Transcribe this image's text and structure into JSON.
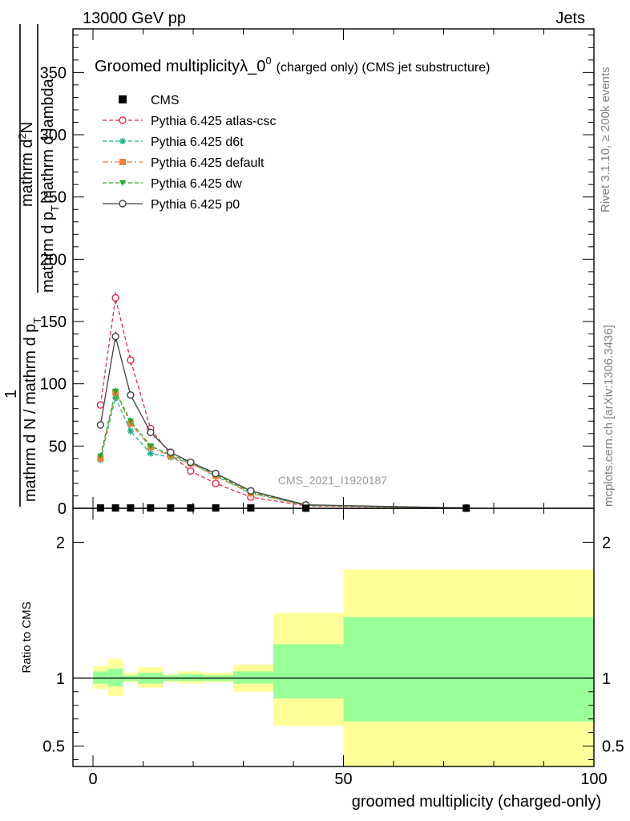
{
  "header": {
    "left": "13000 GeV pp",
    "right": "Jets"
  },
  "side_labels": {
    "rivet": "Rivet 3.1.10, ≥ 200k events",
    "mcplots": "mcplots.cern.ch [arXiv:1306.3436]"
  },
  "chart_data": [
    {
      "type": "line",
      "title": "Groomed multiplicityλ_0",
      "title_sup": "0",
      "title_suffix": "(charged only) (CMS jet substructure)",
      "watermark": "CMS_2021_I1920187",
      "ylabel": "1 / (mathrm d N / mathrm d p_T) mathrm d²N / (mathrm d p_T mathrm d lambda)",
      "ylabel_parts": {
        "top_1": "mathrm d",
        "top_sup": "2",
        "top_2": "N",
        "mid": "mathrm d p",
        "mid_sub": "T",
        "mid_2": "mathrm d lambda",
        "one": "1",
        "bottom": "mathrm d N / mathrm d p",
        "bottom_sub": "T"
      },
      "xlim": [
        -4,
        100
      ],
      "ylim": [
        0,
        385
      ],
      "yticks": [
        0,
        50,
        100,
        150,
        200,
        250,
        300,
        350
      ],
      "legend_placement": "top-left",
      "series": [
        {
          "name": "CMS",
          "color": "#000000",
          "marker": "square",
          "x": [
            1.5,
            4.5,
            7.5,
            11.5,
            15.5,
            19.5,
            24.5,
            31.5,
            42.5,
            74.5
          ],
          "y": [
            0.3,
            0.3,
            0.3,
            0.3,
            0.3,
            0.3,
            0.3,
            0.3,
            0.1,
            0.1
          ],
          "y_err": [
            0.2,
            0.2,
            0.2,
            0.2,
            0.2,
            0.2,
            0.2,
            0.2,
            0.1,
            0.1
          ]
        },
        {
          "name": "Pythia 6.425 atlas-csc",
          "color": "#e8284f",
          "marker": "circle-open",
          "dash": "5,3",
          "x": [
            1.5,
            4.5,
            7.5,
            11.5,
            15.5,
            19.5,
            24.5,
            31.5,
            42.5,
            74.5
          ],
          "y": [
            83,
            169,
            119,
            64,
            43,
            30,
            20,
            9,
            2,
            0.2
          ],
          "y_err": [
            3,
            5,
            4,
            3,
            2,
            2,
            1,
            1,
            0.5,
            0.1
          ]
        },
        {
          "name": "Pythia 6.425 d6t",
          "color": "#1db38b",
          "marker": "star",
          "dash": "5,3",
          "x": [
            1.5,
            4.5,
            7.5,
            11.5,
            15.5,
            19.5,
            24.5,
            31.5,
            42.5,
            74.5
          ],
          "y": [
            39,
            89,
            62,
            44,
            41,
            36,
            26,
            12,
            2.5,
            0.2
          ],
          "y_err": [
            2,
            3,
            3,
            2,
            2,
            2,
            1,
            1,
            0.5,
            0.1
          ]
        },
        {
          "name": "Pythia 6.425 default",
          "color": "#f0803c",
          "marker": "square",
          "dash": "7,3,2,3",
          "x": [
            1.5,
            4.5,
            7.5,
            11.5,
            15.5,
            19.5,
            24.5,
            31.5,
            42.5,
            74.5
          ],
          "y": [
            40,
            93,
            68,
            49,
            42,
            36,
            26,
            12,
            2.5,
            0.2
          ],
          "y_err": [
            2,
            3,
            3,
            2,
            2,
            2,
            1,
            1,
            0.5,
            0.1
          ]
        },
        {
          "name": "Pythia 6.425 dw",
          "color": "#1faa1f",
          "marker": "triangle-down",
          "dash": "5,3",
          "x": [
            1.5,
            4.5,
            7.5,
            11.5,
            15.5,
            19.5,
            24.5,
            31.5,
            42.5,
            74.5
          ],
          "y": [
            42,
            94,
            70,
            50,
            43,
            37,
            27,
            13,
            2.5,
            0.2
          ],
          "y_err": [
            2,
            3,
            3,
            2,
            2,
            2,
            1,
            1,
            0.5,
            0.1
          ]
        },
        {
          "name": "Pythia 6.425 p0",
          "color": "#404040",
          "marker": "circle-open",
          "dash": "",
          "x": [
            1.5,
            4.5,
            7.5,
            11.5,
            15.5,
            19.5,
            24.5,
            31.5,
            42.5,
            74.5
          ],
          "y": [
            67,
            138,
            91,
            61,
            45,
            37,
            28,
            14,
            2.8,
            0.3
          ],
          "y_err": [
            3,
            4,
            3,
            2,
            2,
            2,
            1,
            1,
            0.5,
            0.1
          ]
        }
      ]
    },
    {
      "type": "area",
      "ylabel": "Ratio to CMS",
      "xlabel": "groomed multiplicity (charged-only)",
      "xlim": [
        -4,
        100
      ],
      "xticks": [
        0,
        50,
        100
      ],
      "ylim": [
        0.35,
        2.25
      ],
      "yticks": [
        0.5,
        1,
        2
      ],
      "reference_line": 1,
      "colors": {
        "stat": "#99ff99",
        "total": "#ffff99",
        "line": "#000000"
      },
      "bins": [
        {
          "lo": 0,
          "hi": 3,
          "stat_lo": 0.96,
          "stat_hi": 1.05,
          "tot_lo": 0.92,
          "tot_hi": 1.09
        },
        {
          "lo": 3,
          "hi": 6,
          "stat_lo": 0.94,
          "stat_hi": 1.07,
          "tot_lo": 0.87,
          "tot_hi": 1.14
        },
        {
          "lo": 6,
          "hi": 9,
          "stat_lo": 0.98,
          "stat_hi": 1.02,
          "tot_lo": 0.97,
          "tot_hi": 1.04
        },
        {
          "lo": 9,
          "hi": 14,
          "stat_lo": 0.96,
          "stat_hi": 1.04,
          "tot_lo": 0.93,
          "tot_hi": 1.08
        },
        {
          "lo": 14,
          "hi": 17,
          "stat_lo": 0.98,
          "stat_hi": 1.02,
          "tot_lo": 0.97,
          "tot_hi": 1.03
        },
        {
          "lo": 17,
          "hi": 22,
          "stat_lo": 0.98,
          "stat_hi": 1.03,
          "tot_lo": 0.96,
          "tot_hi": 1.05
        },
        {
          "lo": 22,
          "hi": 28,
          "stat_lo": 0.98,
          "stat_hi": 1.02,
          "tot_lo": 0.97,
          "tot_hi": 1.04
        },
        {
          "lo": 28,
          "hi": 36,
          "stat_lo": 0.96,
          "stat_hi": 1.05,
          "tot_lo": 0.9,
          "tot_hi": 1.1
        },
        {
          "lo": 36,
          "hi": 50,
          "stat_lo": 0.85,
          "stat_hi": 1.25,
          "tot_lo": 0.65,
          "tot_hi": 1.48
        },
        {
          "lo": 50,
          "hi": 100,
          "stat_lo": 0.68,
          "stat_hi": 1.45,
          "tot_lo": 0.35,
          "tot_hi": 1.8
        }
      ]
    }
  ]
}
